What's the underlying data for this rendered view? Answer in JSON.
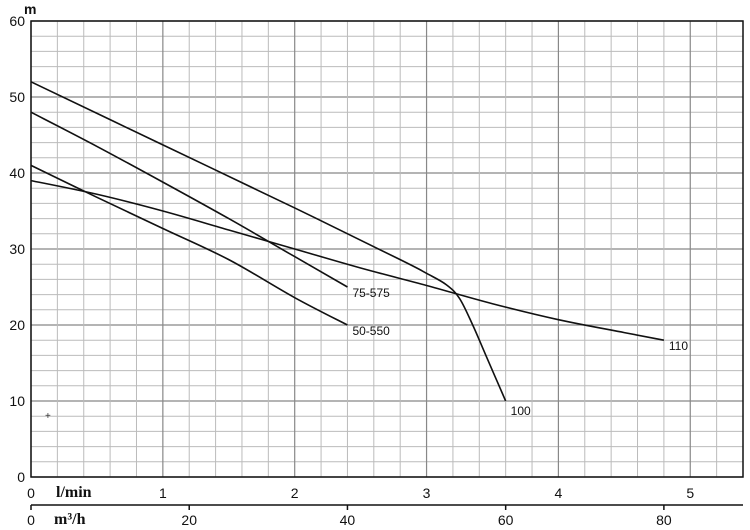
{
  "chart_data": {
    "type": "line",
    "ylabel": "m",
    "ylim": [
      0,
      60
    ],
    "yticks": [
      "0",
      "10",
      "20",
      "30",
      "40",
      "50",
      "60"
    ],
    "xlim": [
      0,
      5.4
    ],
    "x_axis_top": {
      "label": "l/min",
      "ticks": [
        "0",
        "1",
        "2",
        "3",
        "4",
        "5"
      ],
      "values": [
        0,
        1,
        2,
        3,
        4,
        5
      ]
    },
    "x_axis_bottom": {
      "label": "m³/h",
      "ticks": [
        "0",
        "20",
        "40",
        "60",
        "80"
      ],
      "values": [
        0,
        20,
        40,
        60,
        80
      ]
    },
    "grid": true,
    "series": [
      {
        "name": "50-550",
        "x": [
          0,
          0.5,
          1,
          1.5,
          2,
          2.4
        ],
        "y": [
          41,
          36.8,
          32.7,
          28.6,
          23.6,
          20
        ]
      },
      {
        "name": "75-575",
        "x": [
          0,
          0.5,
          1,
          1.5,
          2,
          2.4
        ],
        "y": [
          48,
          43.5,
          38.8,
          34,
          29,
          25
        ]
      },
      {
        "name": "100",
        "x": [
          0,
          1,
          2,
          2.8,
          3.0,
          3.15,
          3.25,
          3.35,
          3.45,
          3.6
        ],
        "y": [
          52,
          43.7,
          35.4,
          28.6,
          26.8,
          25.3,
          23.5,
          20,
          16,
          10
        ]
      },
      {
        "name": "110",
        "x": [
          0,
          0.5,
          1,
          1.5,
          2,
          2.5,
          3,
          3.5,
          4,
          4.5,
          4.8
        ],
        "y": [
          39,
          37.2,
          35,
          32.5,
          30,
          27.5,
          25.2,
          22.8,
          20.7,
          19,
          18
        ]
      }
    ]
  }
}
